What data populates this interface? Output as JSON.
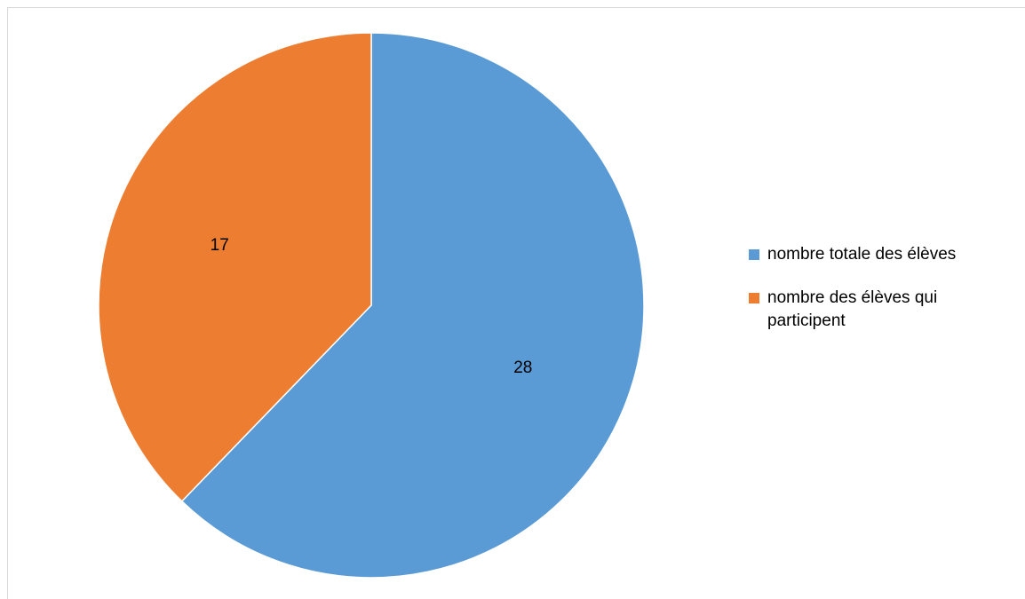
{
  "chart_data": {
    "type": "pie",
    "title": "",
    "slices": [
      {
        "label": "nombre totale des élèves",
        "value": 28,
        "color": "#5B9BD5"
      },
      {
        "label": "nombre des élèves qui participent",
        "value": 17,
        "color": "#ED7D31"
      }
    ],
    "start_angle_deg": 0,
    "direction": "clockwise",
    "data_labels": "values",
    "legend_position": "right"
  }
}
